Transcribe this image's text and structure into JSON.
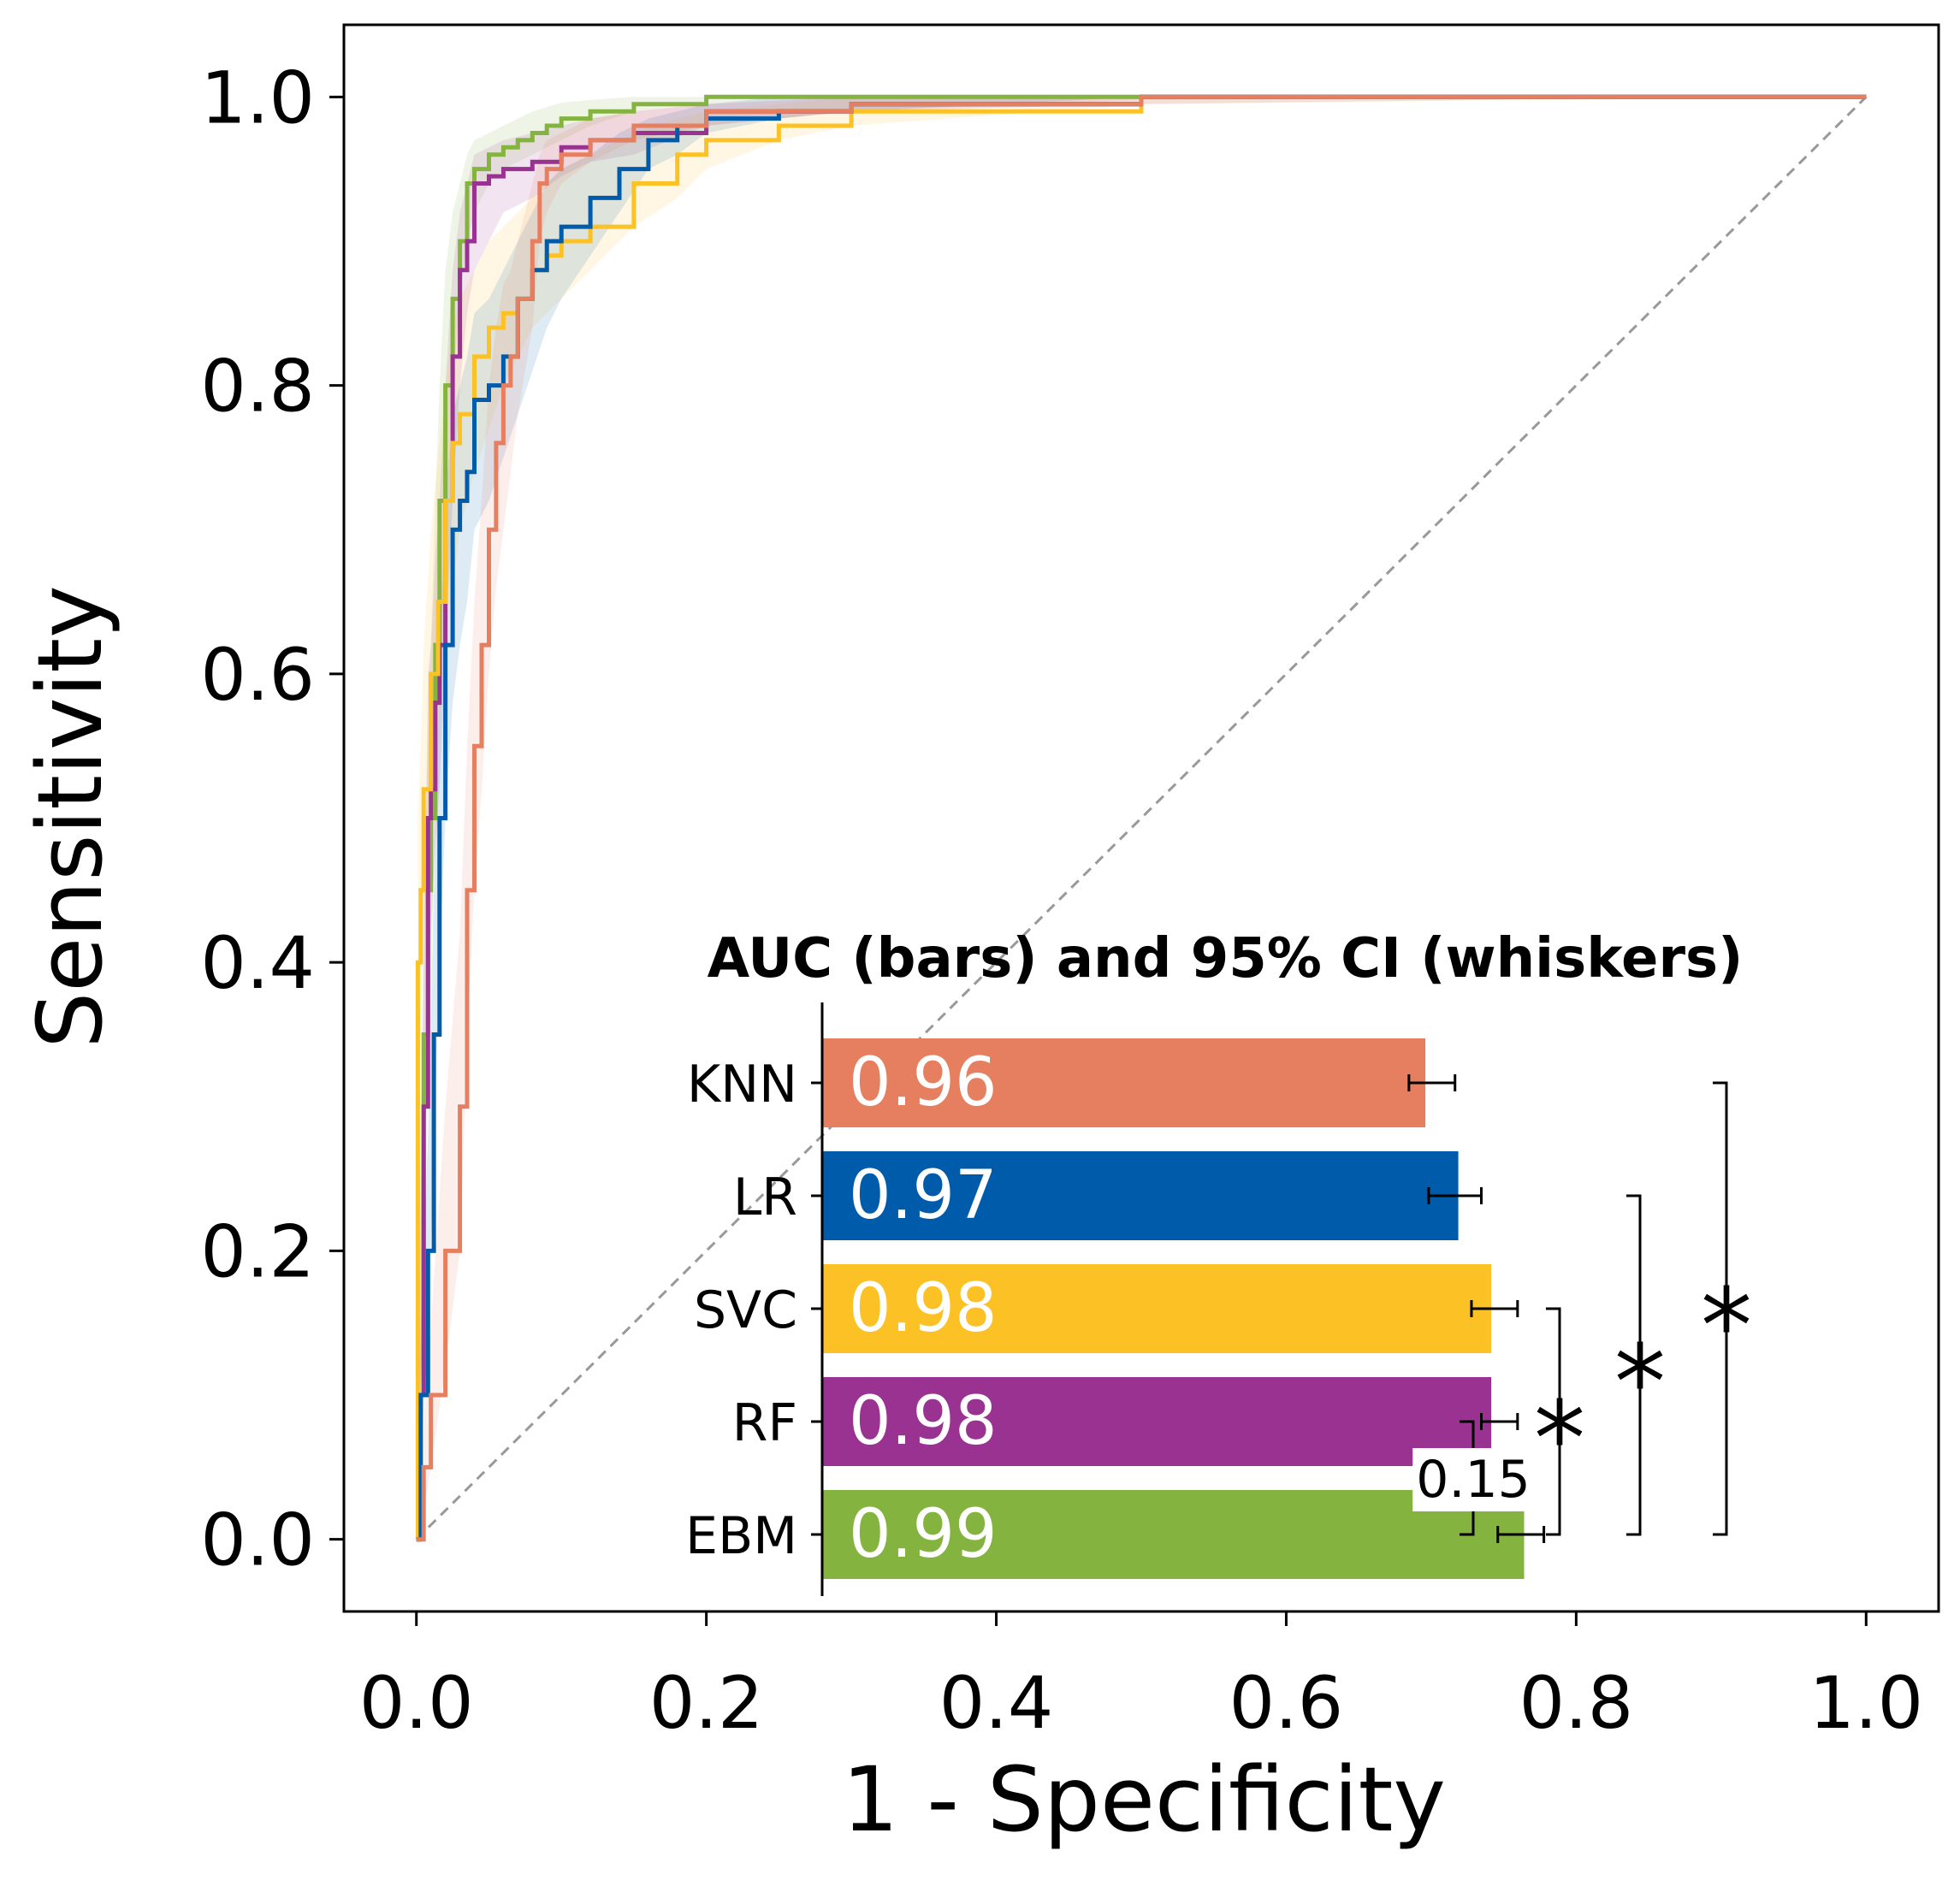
{
  "chart_data": [
    {
      "type": "line",
      "xlabel": "1 - Specificity",
      "ylabel": "Sensitivity",
      "xlim": [
        -0.05,
        1.05
      ],
      "ylim": [
        -0.05,
        1.05
      ],
      "xticks": [
        0.0,
        0.2,
        0.4,
        0.6,
        0.8,
        1.0
      ],
      "yticks": [
        0.0,
        0.2,
        0.4,
        0.6,
        0.8,
        1.0
      ],
      "xtick_labels": [
        "0.0",
        "0.2",
        "0.4",
        "0.6",
        "0.8",
        "1.0"
      ],
      "ytick_labels": [
        "0.0",
        "0.2",
        "0.4",
        "0.6",
        "0.8",
        "1.0"
      ],
      "grid": false,
      "chance_line": {
        "x": [
          0,
          1
        ],
        "y": [
          0,
          1
        ],
        "style": "dashed",
        "color": "#999999"
      },
      "series": [
        {
          "name": "EBM",
          "color": "#84B340",
          "x": [
            0,
            0.002,
            0.005,
            0.008,
            0.01,
            0.013,
            0.016,
            0.02,
            0.025,
            0.03,
            0.035,
            0.04,
            0.05,
            0.06,
            0.07,
            0.08,
            0.09,
            0.1,
            0.12,
            0.15,
            0.2,
            0.3,
            0.5,
            1.0
          ],
          "y": [
            0,
            0.1,
            0.35,
            0.45,
            0.5,
            0.62,
            0.72,
            0.8,
            0.86,
            0.9,
            0.94,
            0.95,
            0.96,
            0.965,
            0.97,
            0.975,
            0.98,
            0.985,
            0.99,
            0.995,
            1.0,
            1.0,
            1.0,
            1.0
          ],
          "ci_lower": [
            0,
            0.05,
            0.2,
            0.3,
            0.38,
            0.5,
            0.6,
            0.7,
            0.8,
            0.86,
            0.9,
            0.92,
            0.94,
            0.95,
            0.955,
            0.96,
            0.965,
            0.97,
            0.98,
            0.99,
            0.995,
            1.0,
            1.0,
            1.0
          ],
          "ci_upper": [
            0,
            0.15,
            0.45,
            0.55,
            0.62,
            0.72,
            0.8,
            0.88,
            0.92,
            0.94,
            0.96,
            0.97,
            0.975,
            0.98,
            0.985,
            0.99,
            0.993,
            0.996,
            0.998,
            1.0,
            1.0,
            1.0,
            1.0,
            1.0
          ]
        },
        {
          "name": "RF",
          "color": "#993290",
          "x": [
            0,
            0.002,
            0.005,
            0.008,
            0.01,
            0.013,
            0.016,
            0.02,
            0.025,
            0.03,
            0.035,
            0.04,
            0.05,
            0.06,
            0.08,
            0.1,
            0.12,
            0.15,
            0.2,
            0.3,
            0.5,
            0.9,
            1.0
          ],
          "y": [
            0,
            0.1,
            0.3,
            0.5,
            0.52,
            0.58,
            0.62,
            0.72,
            0.82,
            0.88,
            0.9,
            0.94,
            0.945,
            0.95,
            0.955,
            0.965,
            0.97,
            0.975,
            0.99,
            0.995,
            1.0,
            1.0,
            1.0
          ],
          "ci_lower": [
            0,
            0.05,
            0.2,
            0.38,
            0.42,
            0.48,
            0.52,
            0.62,
            0.72,
            0.8,
            0.85,
            0.88,
            0.9,
            0.92,
            0.93,
            0.945,
            0.955,
            0.96,
            0.98,
            0.99,
            0.995,
            1.0,
            1.0
          ],
          "ci_upper": [
            0,
            0.15,
            0.4,
            0.6,
            0.62,
            0.68,
            0.72,
            0.8,
            0.88,
            0.92,
            0.94,
            0.96,
            0.965,
            0.97,
            0.975,
            0.98,
            0.985,
            0.99,
            0.995,
            1.0,
            1.0,
            1.0,
            1.0
          ]
        },
        {
          "name": "SVC",
          "color": "#FCC124",
          "x": [
            0,
            0.001,
            0.003,
            0.005,
            0.01,
            0.015,
            0.02,
            0.025,
            0.03,
            0.04,
            0.05,
            0.06,
            0.07,
            0.08,
            0.09,
            0.1,
            0.12,
            0.15,
            0.18,
            0.2,
            0.25,
            0.3,
            0.5,
            1.0
          ],
          "y": [
            0,
            0.4,
            0.45,
            0.52,
            0.6,
            0.65,
            0.72,
            0.76,
            0.78,
            0.82,
            0.84,
            0.85,
            0.86,
            0.88,
            0.89,
            0.9,
            0.91,
            0.94,
            0.96,
            0.97,
            0.98,
            0.99,
            1.0,
            1.0
          ],
          "ci_lower": [
            0,
            0.3,
            0.35,
            0.42,
            0.5,
            0.55,
            0.62,
            0.66,
            0.7,
            0.74,
            0.77,
            0.8,
            0.82,
            0.84,
            0.85,
            0.86,
            0.88,
            0.91,
            0.93,
            0.95,
            0.97,
            0.98,
            0.995,
            1.0
          ],
          "ci_upper": [
            0,
            0.5,
            0.55,
            0.62,
            0.7,
            0.75,
            0.8,
            0.84,
            0.86,
            0.88,
            0.9,
            0.91,
            0.92,
            0.93,
            0.94,
            0.95,
            0.96,
            0.975,
            0.985,
            0.99,
            0.995,
            1.0,
            1.0,
            1.0
          ]
        },
        {
          "name": "LR",
          "color": "#005CAB",
          "x": [
            0,
            0.003,
            0.008,
            0.012,
            0.016,
            0.02,
            0.025,
            0.03,
            0.035,
            0.04,
            0.05,
            0.06,
            0.07,
            0.08,
            0.09,
            0.1,
            0.12,
            0.14,
            0.16,
            0.18,
            0.2,
            0.25,
            0.3,
            0.5,
            1.0
          ],
          "y": [
            0,
            0.1,
            0.2,
            0.35,
            0.5,
            0.62,
            0.7,
            0.72,
            0.74,
            0.79,
            0.8,
            0.82,
            0.86,
            0.88,
            0.9,
            0.91,
            0.93,
            0.95,
            0.97,
            0.98,
            0.985,
            0.99,
            0.995,
            1.0,
            1.0
          ],
          "ci_lower": [
            0,
            0.05,
            0.14,
            0.27,
            0.4,
            0.5,
            0.58,
            0.62,
            0.65,
            0.7,
            0.72,
            0.75,
            0.78,
            0.81,
            0.84,
            0.86,
            0.89,
            0.92,
            0.95,
            0.96,
            0.975,
            0.985,
            0.99,
            1.0,
            1.0
          ],
          "ci_upper": [
            0,
            0.15,
            0.28,
            0.45,
            0.6,
            0.72,
            0.78,
            0.8,
            0.82,
            0.85,
            0.86,
            0.88,
            0.9,
            0.92,
            0.94,
            0.95,
            0.96,
            0.975,
            0.985,
            0.99,
            0.995,
            1.0,
            1.0,
            1.0,
            1.0
          ]
        },
        {
          "name": "KNN",
          "color": "#E57F60",
          "x": [
            0,
            0.005,
            0.01,
            0.02,
            0.03,
            0.035,
            0.04,
            0.045,
            0.05,
            0.055,
            0.06,
            0.065,
            0.07,
            0.08,
            0.085,
            0.09,
            0.1,
            0.12,
            0.15,
            0.2,
            0.3,
            0.5,
            1.0
          ],
          "y": [
            0,
            0.05,
            0.1,
            0.2,
            0.3,
            0.45,
            0.55,
            0.62,
            0.7,
            0.76,
            0.8,
            0.82,
            0.86,
            0.9,
            0.94,
            0.95,
            0.96,
            0.97,
            0.98,
            0.99,
            0.995,
            1.0,
            1.0
          ],
          "ci_lower": [
            0,
            0.02,
            0.05,
            0.12,
            0.2,
            0.35,
            0.45,
            0.52,
            0.6,
            0.66,
            0.7,
            0.74,
            0.78,
            0.84,
            0.9,
            0.92,
            0.94,
            0.955,
            0.97,
            0.98,
            0.99,
            0.998,
            1.0
          ],
          "ci_upper": [
            0,
            0.08,
            0.15,
            0.3,
            0.42,
            0.55,
            0.65,
            0.72,
            0.8,
            0.84,
            0.87,
            0.88,
            0.9,
            0.94,
            0.96,
            0.97,
            0.975,
            0.985,
            0.99,
            0.995,
            1.0,
            1.0,
            1.0
          ]
        }
      ]
    },
    {
      "type": "bar",
      "orientation": "horizontal",
      "title": "AUC (bars) and 95% CI (whiskers)",
      "categories": [
        "KNN",
        "LR",
        "SVC",
        "RF",
        "EBM"
      ],
      "values": [
        0.96,
        0.97,
        0.98,
        0.98,
        0.99
      ],
      "value_labels": [
        "0.96",
        "0.97",
        "0.98",
        "0.98",
        "0.99"
      ],
      "colors": [
        "#E57F60",
        "#005CAB",
        "#FCC124",
        "#993290",
        "#84B340"
      ],
      "ci_lower": [
        0.955,
        0.961,
        0.974,
        0.977,
        0.982
      ],
      "ci_upper": [
        0.969,
        0.977,
        0.988,
        0.988,
        0.996
      ],
      "xlim": [
        0.777,
        1.0
      ],
      "significance": [
        {
          "from": "EBM",
          "to": "RF",
          "label": "0.15"
        },
        {
          "from": "EBM",
          "to": "SVC",
          "label": "*"
        },
        {
          "from": "EBM",
          "to": "LR",
          "label": "*"
        },
        {
          "from": "EBM",
          "to": "KNN",
          "label": "*"
        }
      ]
    }
  ]
}
